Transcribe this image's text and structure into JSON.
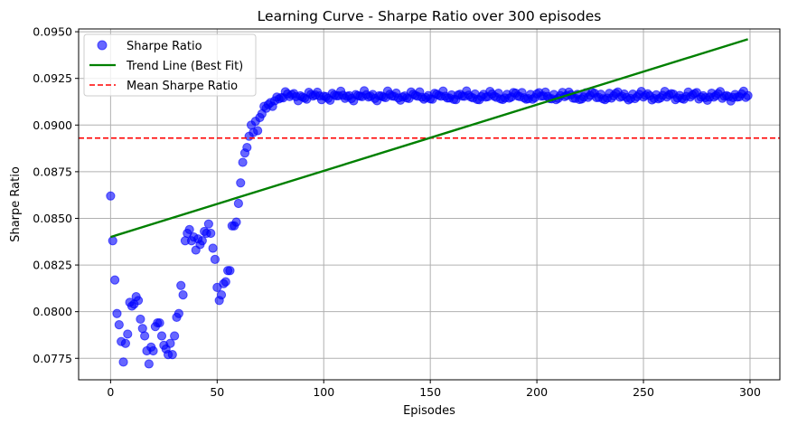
{
  "chart_data": {
    "type": "scatter",
    "title": "Learning Curve - Sharpe Ratio over 300 episodes",
    "xlabel": "Episodes",
    "ylabel": "Sharpe Ratio",
    "xlim": [
      -15,
      314
    ],
    "ylim": [
      0.07635,
      0.09515
    ],
    "xticks": [
      0,
      50,
      100,
      150,
      200,
      250,
      300
    ],
    "yticks": [
      0.0775,
      0.08,
      0.0825,
      0.085,
      0.0875,
      0.09,
      0.0925,
      0.095
    ],
    "ytick_labels": [
      "0.0775",
      "0.0800",
      "0.0825",
      "0.0850",
      "0.0875",
      "0.0900",
      "0.0925",
      "0.0950"
    ],
    "grid": true,
    "legend_position": "top-left",
    "colors": {
      "scatter": "#0000ff",
      "trend": "#008000",
      "mean": "#ff0000",
      "grid": "#b0b0b0"
    },
    "series": [
      {
        "name": "Sharpe Ratio",
        "kind": "scatter",
        "early_points": {
          "x": [
            0,
            1,
            2,
            3,
            4,
            5,
            6,
            7,
            8,
            9,
            10,
            11,
            12,
            13,
            14,
            15,
            16,
            17,
            18,
            19,
            20,
            21,
            22,
            23,
            24,
            25,
            26,
            27,
            28,
            29,
            30,
            31,
            32,
            33,
            34,
            35,
            36,
            37,
            38,
            39,
            40,
            41,
            42,
            43,
            44,
            45,
            46,
            47,
            48,
            49,
            50,
            51,
            52,
            53,
            54,
            55,
            56,
            57,
            58,
            59,
            60,
            61,
            62,
            63,
            64,
            65,
            66,
            67,
            68,
            69,
            70,
            71,
            72,
            73,
            74,
            75,
            76,
            77,
            78,
            79
          ],
          "y": [
            0.0862,
            0.0838,
            0.0817,
            0.0799,
            0.0793,
            0.0784,
            0.0773,
            0.0783,
            0.0788,
            0.0805,
            0.0803,
            0.0804,
            0.0808,
            0.0806,
            0.0796,
            0.0791,
            0.0787,
            0.0779,
            0.0772,
            0.0781,
            0.0779,
            0.0792,
            0.0794,
            0.0794,
            0.0787,
            0.0782,
            0.078,
            0.0777,
            0.0783,
            0.0777,
            0.0787,
            0.0797,
            0.0799,
            0.0814,
            0.0809,
            0.0838,
            0.0842,
            0.0844,
            0.0838,
            0.084,
            0.0833,
            0.0839,
            0.0836,
            0.0838,
            0.0843,
            0.0842,
            0.0847,
            0.0842,
            0.0834,
            0.0828,
            0.0813,
            0.0806,
            0.0809,
            0.0815,
            0.0816,
            0.0822,
            0.0822,
            0.0846,
            0.0846,
            0.0848,
            0.0858,
            0.0869,
            0.088,
            0.0885,
            0.0888,
            0.0894,
            0.09,
            0.0896,
            0.0902,
            0.0897,
            0.0904,
            0.0906,
            0.091,
            0.0909,
            0.0911,
            0.0912,
            0.091,
            0.0913,
            0.0915,
            0.0914
          ]
        },
        "plateau": {
          "x_start": 80,
          "x_end": 299,
          "mean": 0.09155,
          "variation": 0.0003
        }
      },
      {
        "name": "Trend Line (Best Fit)",
        "kind": "line",
        "x": [
          0,
          299
        ],
        "y": [
          0.084,
          0.0946
        ]
      },
      {
        "name": "Mean Sharpe Ratio",
        "kind": "hline",
        "y": 0.0893
      }
    ]
  }
}
